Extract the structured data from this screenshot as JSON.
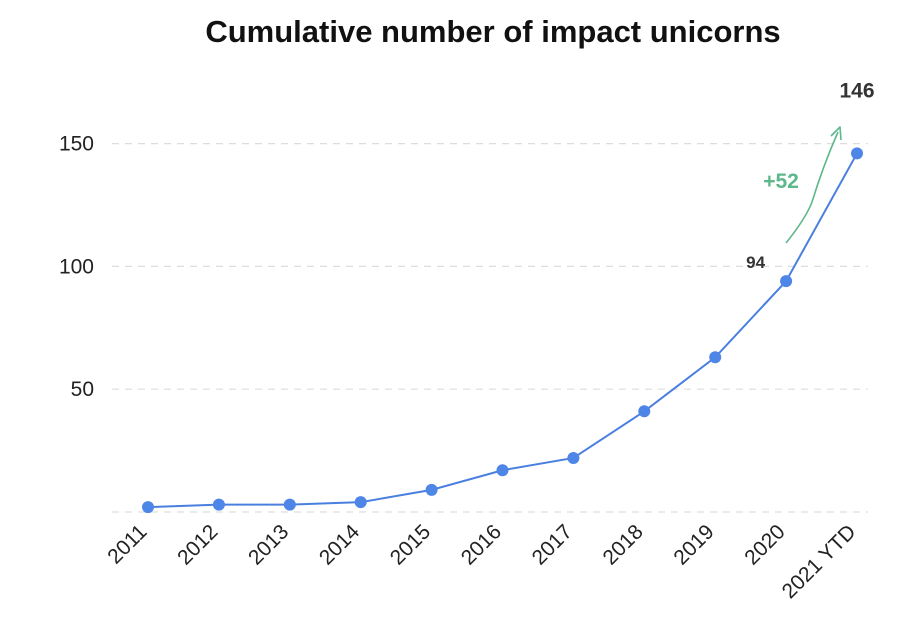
{
  "chart_data": {
    "type": "line",
    "title": "Cumulative number of impact unicorns",
    "categories": [
      "2011",
      "2012",
      "2013",
      "2014",
      "2015",
      "2016",
      "2017",
      "2018",
      "2019",
      "2020",
      "2021 YTD"
    ],
    "series": [
      {
        "values": [
          2,
          3,
          3,
          4,
          9,
          17,
          22,
          41,
          63,
          94,
          146
        ]
      }
    ],
    "yticks": [
      50,
      100,
      150
    ],
    "ylim": [
      0,
      170
    ],
    "grid": true,
    "data_labels": [
      {
        "category": "2020",
        "text": "94"
      },
      {
        "category": "2021 YTD",
        "text": "146"
      }
    ],
    "annotation": {
      "text": "+52",
      "from": "2020",
      "to": "2021 YTD"
    },
    "colors": {
      "line": "#4a7fe0",
      "point": "#4e86e8",
      "annotation": "#5cb88a",
      "grid": "#dddddd"
    }
  }
}
